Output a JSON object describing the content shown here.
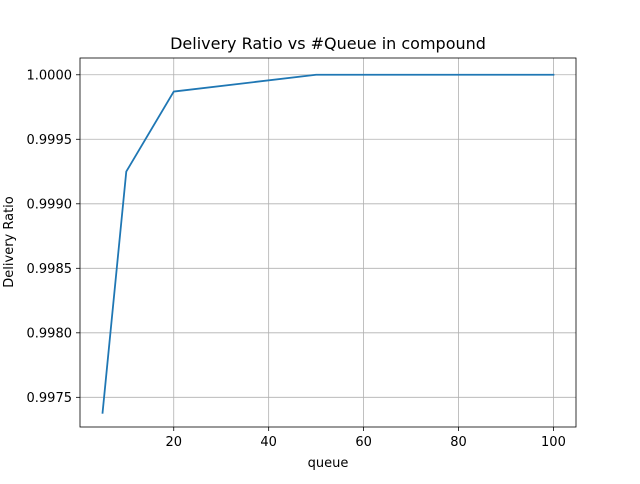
{
  "chart_data": {
    "type": "line",
    "title": "Delivery Ratio vs #Queue in compound",
    "xlabel": "queue",
    "ylabel": "Delivery Ratio",
    "xlim": [
      0.25,
      104.75
    ],
    "ylim": [
      0.99727,
      1.00013
    ],
    "xticks": [
      20,
      40,
      60,
      80,
      100
    ],
    "xtick_labels": [
      "20",
      "40",
      "60",
      "80",
      "100"
    ],
    "yticks": [
      0.9975,
      0.998,
      0.9985,
      0.999,
      0.9995,
      1.0
    ],
    "ytick_labels": [
      "0.9975",
      "0.9980",
      "0.9985",
      "0.9990",
      "0.9995",
      "1.0000"
    ],
    "grid": true,
    "series": [
      {
        "color": "#1f77b4",
        "x": [
          5,
          10,
          20,
          50,
          100
        ],
        "y": [
          0.99738,
          0.99925,
          0.99987,
          1.0,
          1.0
        ]
      }
    ]
  }
}
